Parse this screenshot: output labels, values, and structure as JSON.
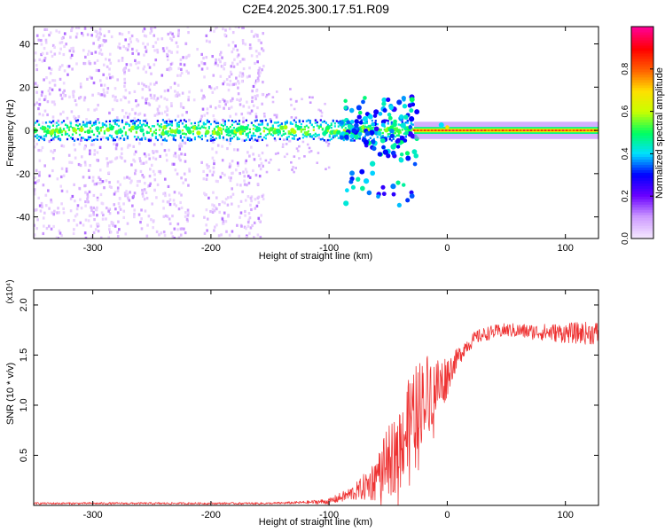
{
  "title": "C2E4.2025.300.17.51.R09",
  "chart_data": [
    {
      "type": "heatmap",
      "title": "C2E4.2025.300.17.51.R09",
      "xlabel": "Height of straight line (km)",
      "ylabel": "Frequency (Hz)",
      "xlim": [
        -350,
        128
      ],
      "ylim": [
        -50,
        48
      ],
      "xticks": [
        -300,
        -200,
        -100,
        0,
        100
      ],
      "xtick_labels": [
        "-300",
        "-200",
        "-100",
        "0",
        "100"
      ],
      "yticks": [
        -40,
        -20,
        0,
        20,
        40
      ],
      "ytick_labels": [
        "-40",
        "-20",
        "0",
        "20",
        "40"
      ],
      "colorbar": {
        "label": "Normalized spectral amplitude",
        "range": [
          0,
          1
        ],
        "ticks": [
          0.0,
          0.2,
          0.4,
          0.6,
          0.8
        ],
        "tick_labels": [
          "0.0",
          "0.2",
          "0.4",
          "0.6",
          "0.8"
        ],
        "colors": [
          "#f4e6ff",
          "#cc99ff",
          "#6a00ff",
          "#0000ff",
          "#00e0ff",
          "#00ff60",
          "#c8ff00",
          "#ffe000",
          "#ff6000",
          "#ff0000",
          "#ff0090"
        ]
      },
      "features": {
        "noise_band_km": [
          -350,
          -155
        ],
        "noise_band_frequency_hz": [
          -50,
          48
        ],
        "carrier_band_km": [
          -350,
          128
        ],
        "carrier_center_hz": 0,
        "carrier_halfwidth_hz": 3,
        "scatter_region_km": [
          -90,
          -25
        ],
        "scatter_region_hz": [
          -35,
          16
        ],
        "clean_region_km": [
          -28,
          128
        ]
      }
    },
    {
      "type": "line",
      "xlabel": "Height of straight line (km)",
      "ylabel": "SNR (10 * v/v)",
      "scale_label": "(x10⁴)",
      "xlim": [
        -350,
        128
      ],
      "ylim": [
        0,
        2.15
      ],
      "xticks": [
        -300,
        -200,
        -100,
        0,
        100
      ],
      "xtick_labels": [
        "-300",
        "-200",
        "-100",
        "0",
        "100"
      ],
      "yticks": [
        0.5,
        1.0,
        1.5,
        2.0
      ],
      "ytick_labels": [
        "0.5",
        "1.0",
        "1.5",
        "2.0"
      ],
      "series": [
        {
          "name": "SNR",
          "color": "#ee3333",
          "x": [
            -350,
            -300,
            -250,
            -200,
            -150,
            -120,
            -100,
            -85,
            -75,
            -65,
            -55,
            -45,
            -35,
            -25,
            -15,
            -5,
            5,
            15,
            25,
            35,
            50,
            75,
            100,
            128
          ],
          "values": [
            0.02,
            0.02,
            0.02,
            0.02,
            0.02,
            0.03,
            0.04,
            0.1,
            0.15,
            0.22,
            0.35,
            0.5,
            0.75,
            1.0,
            1.15,
            1.2,
            1.4,
            1.58,
            1.68,
            1.72,
            1.75,
            1.73,
            1.72,
            1.72
          ],
          "noise_amplitude": [
            0.01,
            0.01,
            0.01,
            0.01,
            0.01,
            0.015,
            0.03,
            0.06,
            0.1,
            0.18,
            0.3,
            0.4,
            0.45,
            0.45,
            0.4,
            0.3,
            0.12,
            0.08,
            0.07,
            0.07,
            0.07,
            0.08,
            0.1,
            0.12
          ]
        }
      ]
    }
  ]
}
